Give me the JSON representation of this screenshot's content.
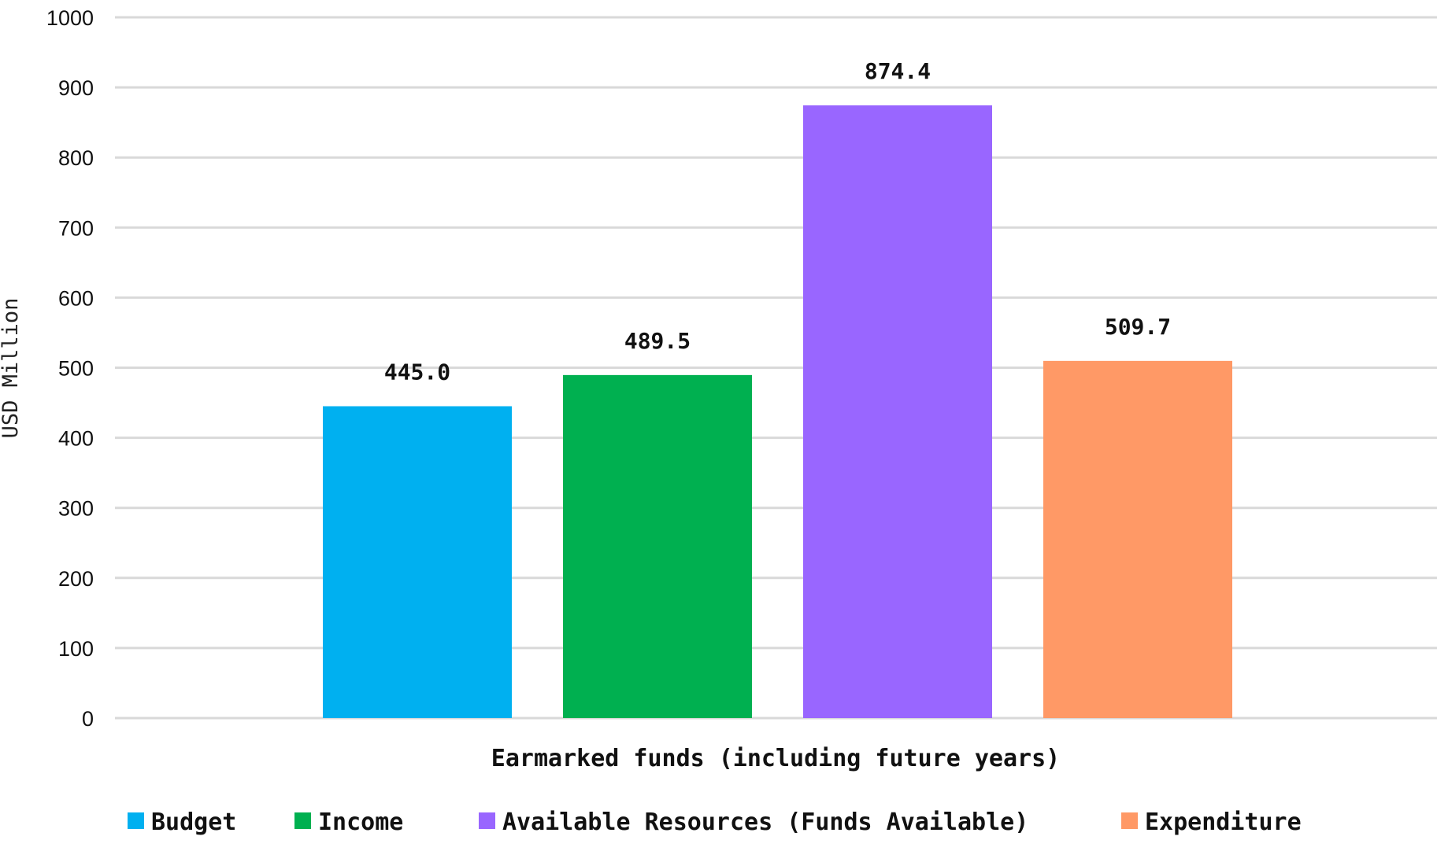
{
  "chart_data": {
    "type": "bar",
    "title": "",
    "categories": [
      "Earmarked funds (including future years)"
    ],
    "xlabel": "",
    "ylabel": "USD Million",
    "ylim": [
      0,
      1000
    ],
    "yticks": [
      "0",
      "100",
      "200",
      "300",
      "400",
      "500",
      "600",
      "700",
      "800",
      "900",
      "1000"
    ],
    "grid": true,
    "legend_position": "bottom",
    "series": [
      {
        "name": "Budget",
        "values": [
          445.0
        ],
        "label": "445.0",
        "color": "#00b0f0"
      },
      {
        "name": "Income",
        "values": [
          489.5
        ],
        "label": "489.5",
        "color": "#00b050"
      },
      {
        "name": "Available Resources (Funds Available)",
        "values": [
          874.4
        ],
        "label": "874.4",
        "color": "#9966ff"
      },
      {
        "name": "Expenditure",
        "values": [
          509.7
        ],
        "label": "509.7",
        "color": "#ff9966"
      }
    ]
  }
}
